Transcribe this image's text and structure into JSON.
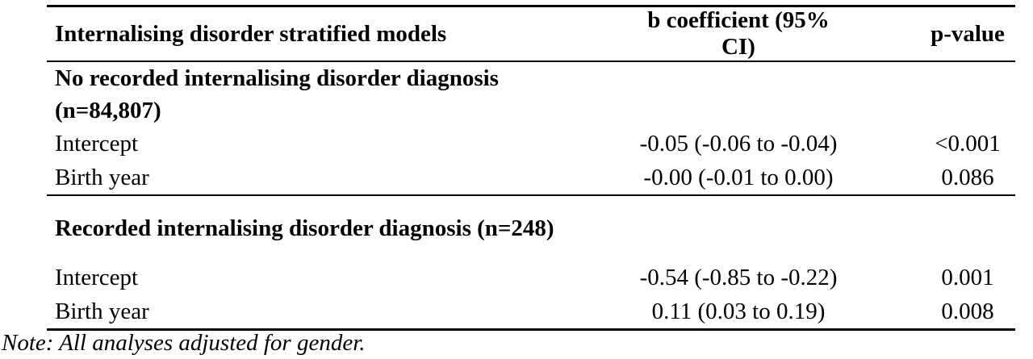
{
  "table": {
    "header": [
      "Internalising disorder stratified models",
      "b coefficient (95% CI)",
      "p-value"
    ],
    "groups": [
      {
        "title": "No recorded internalising disorder diagnosis (n=84,807)",
        "rows": [
          [
            "Intercept",
            "-0.05 (-0.06 to -0.04)",
            "<0.001"
          ],
          [
            "Birth year",
            "-0.00 (-0.01 to 0.00)",
            "0.086"
          ]
        ]
      },
      {
        "title": "Recorded internalising disorder diagnosis (n=248)",
        "rows": [
          [
            "Intercept",
            "-0.54 (-0.85 to -0.22)",
            "0.001"
          ],
          [
            "Birth year",
            "0.11 (0.03 to 0.19)",
            "0.008"
          ]
        ]
      }
    ]
  },
  "note": "Note: All analyses adjusted for gender."
}
